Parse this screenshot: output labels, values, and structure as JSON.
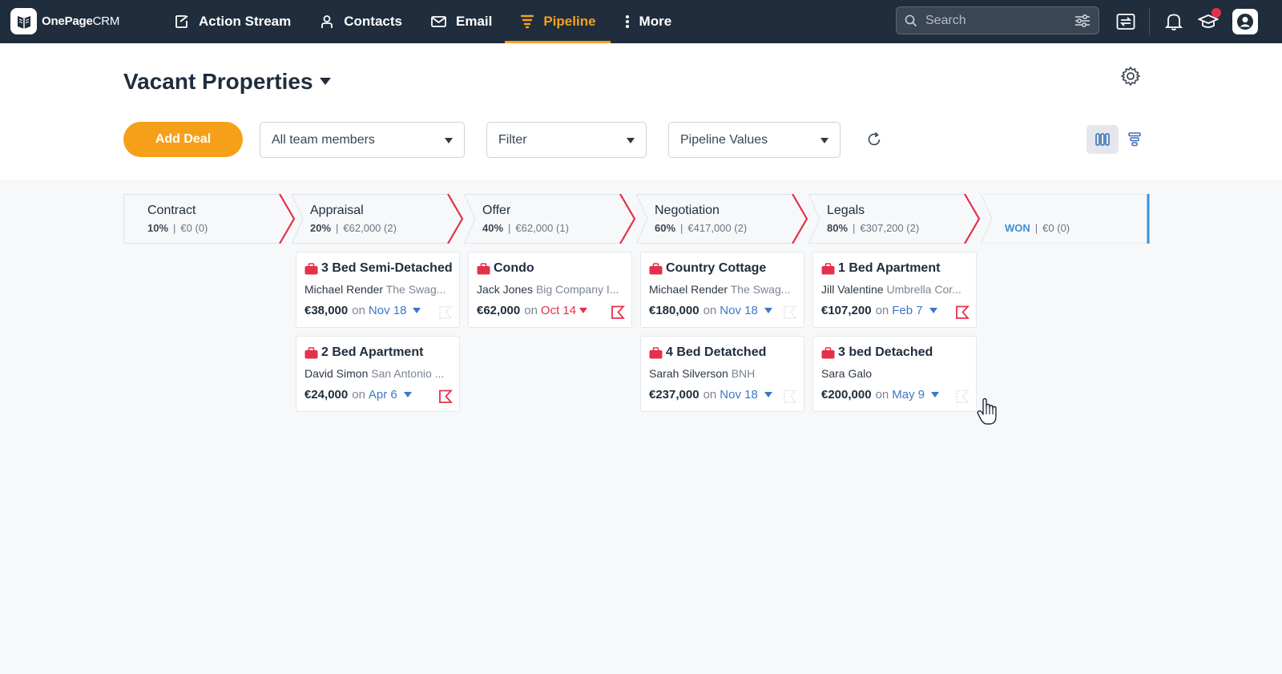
{
  "app": {
    "logo_brand": "OnePage",
    "logo_suffix": "CRM"
  },
  "nav": {
    "items": [
      {
        "label": "Action Stream",
        "icon": "action-stream-icon",
        "active": false
      },
      {
        "label": "Contacts",
        "icon": "contacts-icon",
        "active": false
      },
      {
        "label": "Email",
        "icon": "email-icon",
        "active": false
      },
      {
        "label": "Pipeline",
        "icon": "pipeline-icon",
        "active": true
      },
      {
        "label": "More",
        "icon": "more-vertical-icon",
        "active": false
      }
    ],
    "search_placeholder": "Search"
  },
  "colors": {
    "nav_bg": "#1f2d3d",
    "accent": "#f6a01a",
    "deal_icon": "#e5304a",
    "link": "#3d78c4",
    "won": "#3d8fd8"
  },
  "header": {
    "title": "Vacant Properties",
    "add_deal_label": "Add Deal",
    "team_select": "All team members",
    "filter_select": "Filter",
    "values_select": "Pipeline Values"
  },
  "stages": [
    {
      "name": "Contract",
      "pct": "10%",
      "sep": "|",
      "value": "€0 (0)"
    },
    {
      "name": "Appraisal",
      "pct": "20%",
      "sep": "|",
      "value": "€62,000 (2)"
    },
    {
      "name": "Offer",
      "pct": "40%",
      "sep": "|",
      "value": "€62,000 (1)"
    },
    {
      "name": "Negotiation",
      "pct": "60%",
      "sep": "|",
      "value": "€417,000 (2)"
    },
    {
      "name": "Legals",
      "pct": "80%",
      "sep": "|",
      "value": "€307,200 (2)"
    },
    {
      "name": "",
      "pct": "WON",
      "sep": "|",
      "value": "€0 (0)"
    }
  ],
  "deals": [
    {
      "stage": "Appraisal",
      "title": "3 Bed Semi-Detached",
      "contact": "Michael Render",
      "company": "The Swag...",
      "amount": "€38,000",
      "on": "on",
      "date": "Nov 18",
      "overdue": false,
      "flag": "inactive"
    },
    {
      "stage": "Appraisal",
      "title": "2 Bed Apartment",
      "contact": "David Simon",
      "company": "San Antonio ...",
      "amount": "€24,000",
      "on": "on",
      "date": "Apr 6",
      "overdue": false,
      "flag": "active"
    },
    {
      "stage": "Offer",
      "title": "Condo",
      "contact": "Jack Jones",
      "company": "Big Company I...",
      "amount": "€62,000",
      "on": "on",
      "date": "Oct 14",
      "overdue": true,
      "flag": "active"
    },
    {
      "stage": "Negotiation",
      "title": "Country Cottage",
      "contact": "Michael Render",
      "company": "The Swag...",
      "amount": "€180,000",
      "on": "on",
      "date": "Nov 18",
      "overdue": false,
      "flag": "inactive"
    },
    {
      "stage": "Negotiation",
      "title": "4 Bed Detatched",
      "contact": "Sarah Silverson",
      "company": "BNH",
      "amount": "€237,000",
      "on": "on",
      "date": "Nov 18",
      "overdue": false,
      "flag": "inactive"
    },
    {
      "stage": "Legals",
      "title": "1 Bed Apartment",
      "contact": "Jill Valentine",
      "company": "Umbrella Cor...",
      "amount": "€107,200",
      "on": "on",
      "date": "Feb 7",
      "overdue": false,
      "flag": "active"
    },
    {
      "stage": "Legals",
      "title": "3 bed Detached",
      "contact": "Sara Galo",
      "company": "",
      "amount": "€200,000",
      "on": "on",
      "date": "May 9",
      "overdue": false,
      "flag": "inactive"
    }
  ]
}
